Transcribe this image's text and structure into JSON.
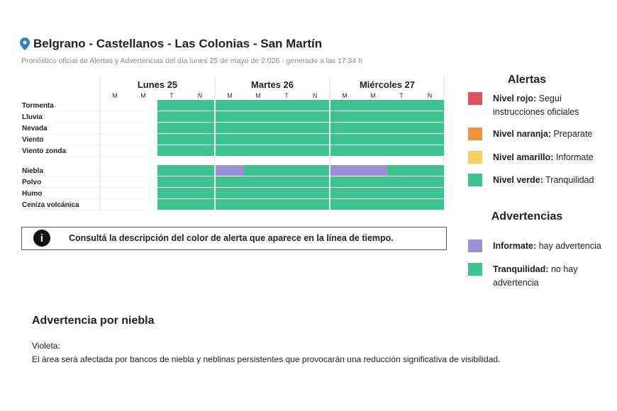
{
  "header": {
    "title": "Belgrano - Castellanos - Las Colonias - San Martín",
    "subtitle": "Pronóstico oficial de Alertas y Advertencias del día lunes 25 de mayo de 2.026 - generado a las 17:34 h"
  },
  "timeline": {
    "days": [
      {
        "name": "Lunes 25",
        "periods": [
          "M",
          "M",
          "T",
          "N"
        ]
      },
      {
        "name": "Martes 26",
        "periods": [
          "M",
          "M",
          "T",
          "N"
        ]
      },
      {
        "name": "Miércoles 27",
        "periods": [
          "M",
          "M",
          "T",
          "N"
        ]
      }
    ],
    "groups": [
      [
        {
          "label": "Tormenta",
          "cells": [
            null,
            null,
            "#3cc48f",
            "#3cc48f",
            "#3cc48f",
            "#3cc48f",
            "#3cc48f",
            "#3cc48f",
            "#3cc48f",
            "#3cc48f",
            "#3cc48f",
            "#3cc48f"
          ]
        },
        {
          "label": "Lluvia",
          "cells": [
            null,
            null,
            "#3cc48f",
            "#3cc48f",
            "#3cc48f",
            "#3cc48f",
            "#3cc48f",
            "#3cc48f",
            "#3cc48f",
            "#3cc48f",
            "#3cc48f",
            "#3cc48f"
          ]
        },
        {
          "label": "Nevada",
          "cells": [
            null,
            null,
            "#3cc48f",
            "#3cc48f",
            "#3cc48f",
            "#3cc48f",
            "#3cc48f",
            "#3cc48f",
            "#3cc48f",
            "#3cc48f",
            "#3cc48f",
            "#3cc48f"
          ]
        },
        {
          "label": "Viento",
          "cells": [
            null,
            null,
            "#3cc48f",
            "#3cc48f",
            "#3cc48f",
            "#3cc48f",
            "#3cc48f",
            "#3cc48f",
            "#3cc48f",
            "#3cc48f",
            "#3cc48f",
            "#3cc48f"
          ]
        },
        {
          "label": "Viento zonda",
          "cells": [
            null,
            null,
            "#3cc48f",
            "#3cc48f",
            "#3cc48f",
            "#3cc48f",
            "#3cc48f",
            "#3cc48f",
            "#3cc48f",
            "#3cc48f",
            "#3cc48f",
            "#3cc48f"
          ]
        }
      ],
      [
        {
          "label": "Niebla",
          "cells": [
            null,
            null,
            "#3cc48f",
            "#3cc48f",
            "#9c8fd8",
            "#3cc48f",
            "#3cc48f",
            "#3cc48f",
            "#9c8fd8",
            "#9c8fd8",
            "#3cc48f",
            "#3cc48f"
          ]
        },
        {
          "label": "Polvo",
          "cells": [
            null,
            null,
            "#3cc48f",
            "#3cc48f",
            "#3cc48f",
            "#3cc48f",
            "#3cc48f",
            "#3cc48f",
            "#3cc48f",
            "#3cc48f",
            "#3cc48f",
            "#3cc48f"
          ]
        },
        {
          "label": "Humo",
          "cells": [
            null,
            null,
            "#3cc48f",
            "#3cc48f",
            "#3cc48f",
            "#3cc48f",
            "#3cc48f",
            "#3cc48f",
            "#3cc48f",
            "#3cc48f",
            "#3cc48f",
            "#3cc48f"
          ]
        },
        {
          "label": "Ceniza volcánica",
          "cells": [
            null,
            null,
            "#3cc48f",
            "#3cc48f",
            "#3cc48f",
            "#3cc48f",
            "#3cc48f",
            "#3cc48f",
            "#3cc48f",
            "#3cc48f",
            "#3cc48f",
            "#3cc48f"
          ]
        }
      ]
    ]
  },
  "notice": "Consultá la descripción del color de alerta que aparece en la línea de tiempo.",
  "legend": [
    {
      "title": "Alertas",
      "items": [
        {
          "label": "Nivel rojo:",
          "text": "Seguí instrucciones oficiales",
          "color": "#e0505f"
        },
        {
          "label": "Nivel naranja:",
          "text": "Preparate",
          "color": "#f0943c"
        },
        {
          "label": "Nivel amarillo:",
          "text": "Informate",
          "color": "#f7d060"
        },
        {
          "label": "Nivel verde:",
          "text": "Tranquilidad",
          "color": "#3cc48f"
        }
      ]
    },
    {
      "title": "Advertencias",
      "items": [
        {
          "label": "Informate:",
          "text": "hay advertencia",
          "color": "#9c8fd8"
        },
        {
          "label": "Tranquilidad:",
          "text": "no hay advertencia",
          "color": "#3cc48f"
        }
      ]
    }
  ],
  "detail": {
    "title": "Advertencia por niebla",
    "label": "Violeta:",
    "text": "El área será afectada por bancos de niebla y neblinas persistentes que provocarán una reducción significativa de visibilidad."
  }
}
